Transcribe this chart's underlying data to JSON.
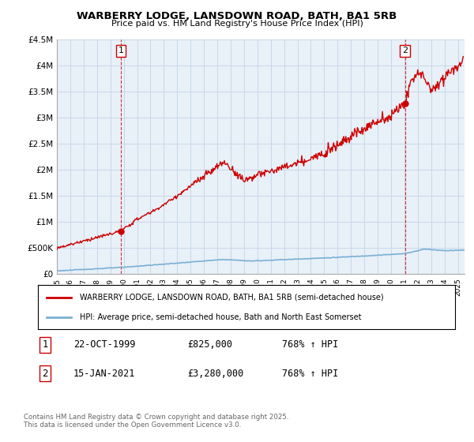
{
  "title": "WARBERRY LODGE, LANSDOWN ROAD, BATH, BA1 5RB",
  "subtitle": "Price paid vs. HM Land Registry's House Price Index (HPI)",
  "legend_house": "WARBERRY LODGE, LANSDOWN ROAD, BATH, BA1 5RB (semi-detached house)",
  "legend_hpi": "HPI: Average price, semi-detached house, Bath and North East Somerset",
  "footnote": "Contains HM Land Registry data © Crown copyright and database right 2025.\nThis data is licensed under the Open Government Licence v3.0.",
  "sale1": {
    "label": "1",
    "date": "22-OCT-1999",
    "price": "£825,000",
    "hpi": "768% ↑ HPI",
    "year": 1999.8,
    "price_val": 825000
  },
  "sale2": {
    "label": "2",
    "date": "15-JAN-2021",
    "price": "£3,280,000",
    "hpi": "768% ↑ HPI",
    "year": 2021.05,
    "price_val": 3280000
  },
  "ylim": [
    0,
    4500000
  ],
  "xlim_start": 1995.0,
  "xlim_end": 2025.5,
  "house_color": "#cc0000",
  "hpi_color": "#7ab0d4",
  "grid_color": "#c8d8e8",
  "background_color": "#ffffff",
  "plot_bg_color": "#e8f0f8",
  "yticks": [
    0,
    500000,
    1000000,
    1500000,
    2000000,
    2500000,
    3000000,
    3500000,
    4000000,
    4500000
  ],
  "ytick_labels": [
    "£0",
    "£500K",
    "£1M",
    "£1.5M",
    "£2M",
    "£2.5M",
    "£3M",
    "£3.5M",
    "£4M",
    "£4.5M"
  ]
}
